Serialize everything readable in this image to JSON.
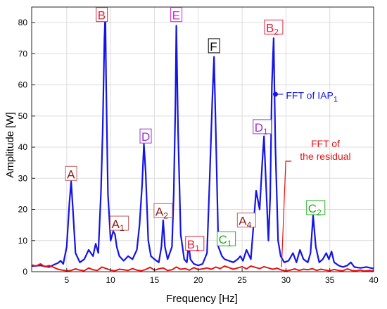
{
  "chart_data": {
    "type": "line",
    "title": "",
    "xlabel": "Frequency [Hz]",
    "ylabel": "Amplitude [W]",
    "xlim": [
      1,
      40
    ],
    "ylim": [
      0,
      85
    ],
    "xticks": [
      5,
      10,
      15,
      20,
      25,
      30,
      35,
      40
    ],
    "yticks": [
      0,
      10,
      20,
      30,
      40,
      50,
      60,
      70,
      80
    ],
    "grid": true,
    "series": [
      {
        "name": "FFT of IAP1",
        "color": "#1414e6",
        "x": [
          1,
          2,
          3,
          3.5,
          4,
          4.3,
          4.6,
          5,
          5.3,
          5.5,
          5.7,
          6,
          6.5,
          7,
          7.5,
          8,
          8.3,
          8.6,
          8.9,
          9.1,
          9.3,
          9.4,
          9.5,
          9.7,
          10,
          10.3,
          10.5,
          10.7,
          11,
          11.5,
          12,
          12.5,
          13,
          13.3,
          13.6,
          13.8,
          14,
          14.3,
          14.6,
          15,
          15.5,
          15.8,
          16,
          16.2,
          16.5,
          17,
          17.2,
          17.4,
          17.5,
          17.7,
          18,
          18.4,
          18.7,
          18.9,
          19.1,
          19.5,
          20,
          20.5,
          21,
          21.3,
          21.6,
          21.8,
          22,
          22.3,
          22.7,
          23,
          23.5,
          24,
          24.5,
          24.8,
          25.1,
          25.5,
          26,
          26.3,
          26.6,
          27,
          27.3,
          27.5,
          27.7,
          28,
          28.2,
          28.4,
          28.6,
          28.8,
          29.1,
          29.4,
          29.8,
          30.3,
          30.8,
          31.2,
          31.6,
          32,
          32.5,
          32.8,
          33.1,
          33.4,
          33.8,
          34.2,
          34.6,
          34.9,
          35.2,
          35.5,
          36,
          36.5,
          37,
          37.4,
          37.8,
          38.5,
          39.2,
          40
        ],
        "y": [
          1.8,
          2.0,
          1.5,
          2.2,
          2.8,
          3.5,
          2.5,
          8,
          22,
          29,
          20,
          6,
          3,
          4,
          7,
          5,
          9,
          6,
          25,
          45,
          75,
          83,
          60,
          25,
          10,
          13,
          12,
          8,
          5,
          3.5,
          5,
          4,
          7,
          15,
          28,
          41,
          32,
          10,
          5,
          4,
          3,
          8,
          16.5,
          8,
          4,
          8,
          25,
          55,
          79,
          45,
          12,
          4,
          3,
          9,
          4,
          2.5,
          2,
          2.5,
          6,
          30,
          55,
          69,
          45,
          8,
          5,
          4,
          3.5,
          3,
          4,
          5,
          3.5,
          7,
          4,
          15,
          26,
          20,
          35,
          43.5,
          30,
          10,
          24,
          60,
          75,
          40,
          10,
          5,
          3,
          3.5,
          6,
          3,
          7,
          4,
          3,
          6,
          18,
          8,
          3,
          4,
          6,
          4,
          6.5,
          3,
          2,
          1.5,
          2,
          3,
          1.5,
          1.2,
          1.5,
          1
        ]
      },
      {
        "name": "FFT of the residual",
        "color": "#e61414",
        "x": [
          1,
          1.5,
          2,
          2.5,
          3,
          3.5,
          4,
          4.5,
          5,
          5.5,
          6,
          6.5,
          7,
          7.5,
          8,
          8.5,
          9,
          9.5,
          10,
          10.5,
          11,
          11.5,
          12,
          12.5,
          13,
          13.5,
          14,
          14.5,
          15,
          15.5,
          16,
          16.5,
          17,
          17.5,
          18,
          18.5,
          19,
          19.5,
          20,
          20.5,
          21,
          21.5,
          22,
          22.5,
          23,
          23.5,
          24,
          24.5,
          25,
          25.5,
          26,
          26.5,
          27,
          27.5,
          28,
          28.5,
          29,
          29.5,
          30,
          30.5,
          31,
          31.5,
          32,
          32.5,
          33,
          33.5,
          34,
          34.5,
          35,
          35.5,
          36,
          36.5,
          37,
          37.5,
          38,
          38.5,
          39,
          39.5,
          40
        ],
        "y": [
          2.2,
          1.8,
          2.5,
          1.6,
          2.0,
          1.4,
          0.8,
          0.5,
          0.3,
          0.4,
          0.9,
          0.5,
          0.3,
          1.2,
          0.6,
          0.4,
          1.5,
          1.0,
          0.5,
          0.3,
          0.8,
          0.6,
          0.4,
          1.0,
          0.5,
          0.3,
          0.7,
          1.4,
          0.5,
          0.9,
          1.2,
          0.4,
          0.6,
          1.5,
          0.8,
          1.0,
          0.5,
          1.3,
          0.7,
          0.9,
          1.2,
          0.8,
          1.5,
          1.0,
          1.8,
          1.3,
          0.8,
          1.2,
          1.6,
          0.9,
          1.8,
          1.4,
          1.0,
          1.6,
          1.2,
          0.8,
          1.1,
          0.5,
          0.3,
          0.5,
          0.9,
          0.4,
          0.8,
          0.6,
          1.0,
          0.4,
          0.8,
          0.5,
          0.3,
          0.7,
          0.4,
          0.3,
          0.9,
          0.4,
          0.3,
          0.5,
          0.2,
          0.4,
          0.3
        ]
      }
    ],
    "peak_labels": [
      {
        "text": "A",
        "sub": "",
        "x": 5.5,
        "y": 30,
        "color": "#8b1a1a",
        "box": "#c06060",
        "fill": "#ffffff"
      },
      {
        "text": "B",
        "sub": "",
        "x": 9.0,
        "y": 81,
        "color": "#e0203a",
        "box": "#e0203a",
        "fill": "#ffffff"
      },
      {
        "text": "A",
        "sub": "1",
        "x": 11.0,
        "y": 14,
        "color": "#8b1a1a",
        "box": "#c06060",
        "fill": "#ffffff"
      },
      {
        "text": "D",
        "sub": "",
        "x": 14.0,
        "y": 42,
        "color": "#9b30c8",
        "box": "#9b30c8",
        "fill": "#ffffff"
      },
      {
        "text": "A",
        "sub": "2",
        "x": 16.0,
        "y": 18,
        "color": "#8b1a1a",
        "box": "#c06060",
        "fill": "#ffffff"
      },
      {
        "text": "E",
        "sub": "",
        "x": 17.5,
        "y": 81,
        "color": "#e020d8",
        "box": "#e020d8",
        "fill": "#ffffff"
      },
      {
        "text": "B",
        "sub": "1",
        "x": 19.6,
        "y": 7.5,
        "color": "#e0203a",
        "box": "#e0203a",
        "fill": "#ffffff"
      },
      {
        "text": "F",
        "sub": "",
        "x": 21.8,
        "y": 71,
        "color": "#000000",
        "box": "#000000",
        "fill": "#ffffff"
      },
      {
        "text": "C",
        "sub": "1",
        "x": 23.2,
        "y": 9,
        "color": "#20b020",
        "box": "#20b020",
        "fill": "#ffffff"
      },
      {
        "text": "A",
        "sub": "4",
        "x": 25.5,
        "y": 15,
        "color": "#8b1a1a",
        "box": "#c06060",
        "fill": "#ffffff"
      },
      {
        "text": "D",
        "sub": "1",
        "x": 27.3,
        "y": 45,
        "color": "#9b30c8",
        "box": "#9b30c8",
        "fill": "#ffffff"
      },
      {
        "text": "B",
        "sub": "2",
        "x": 28.6,
        "y": 77,
        "color": "#e0203a",
        "box": "#e0203a",
        "fill": "#ffffff"
      },
      {
        "text": "C",
        "sub": "2",
        "x": 33.4,
        "y": 19,
        "color": "#20b020",
        "box": "#20b020",
        "fill": "#ffffff"
      }
    ],
    "legend": [
      {
        "text": "FFT of IAP",
        "sub": "1",
        "color": "#1414e6",
        "anchor_x": 28.8,
        "anchor_y": 57,
        "text_x": 30.0,
        "text_y": 55.5
      },
      {
        "lines": [
          "FFT of",
          "the residual"
        ],
        "color": "#e61414",
        "anchor_x": 29.5,
        "anchor_y": 1.5,
        "text_x": 34.5,
        "text_y": 40
      }
    ]
  }
}
